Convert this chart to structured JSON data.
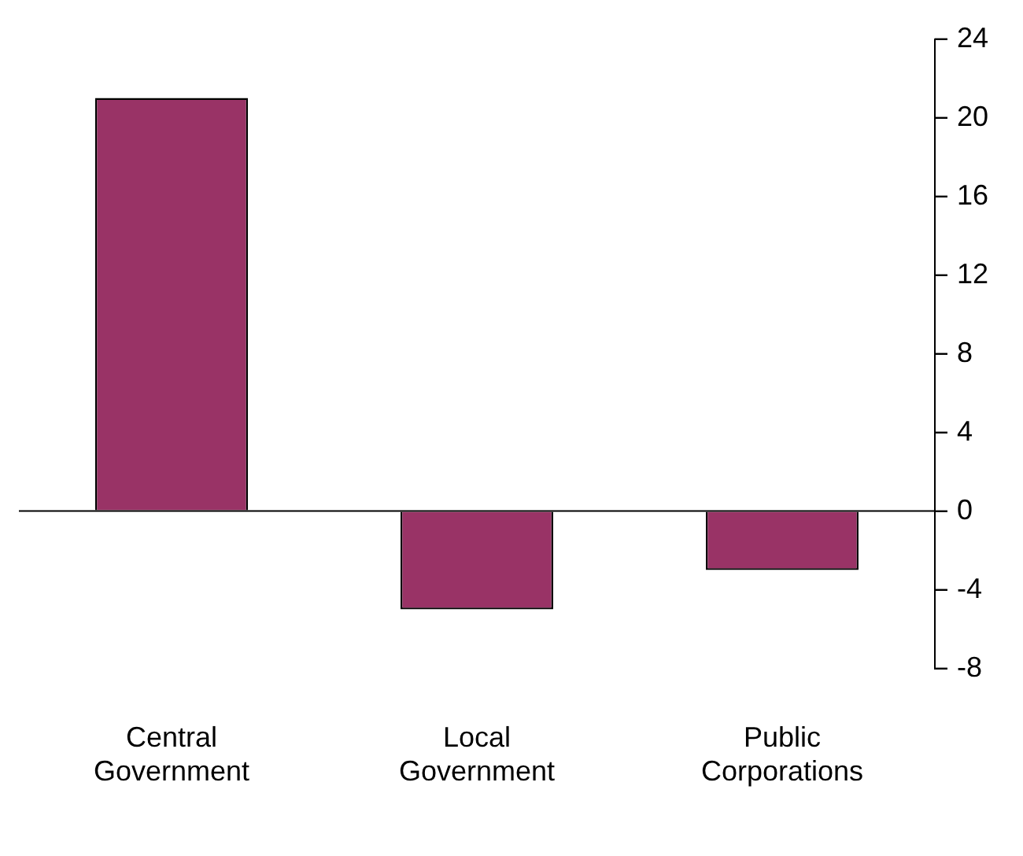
{
  "chart_data": {
    "type": "bar",
    "categories": [
      "Central Government",
      "Local Government",
      "Public Corporations"
    ],
    "values": [
      21,
      -5,
      -3
    ],
    "color": "#993366",
    "ylim": [
      -8,
      24
    ],
    "yticks": [
      -8,
      -4,
      0,
      4,
      8,
      12,
      16,
      20,
      24
    ],
    "grid": false,
    "legend": false,
    "ref_lines": [
      {
        "axis": "y",
        "value": 0,
        "color": "#000000"
      }
    ]
  }
}
